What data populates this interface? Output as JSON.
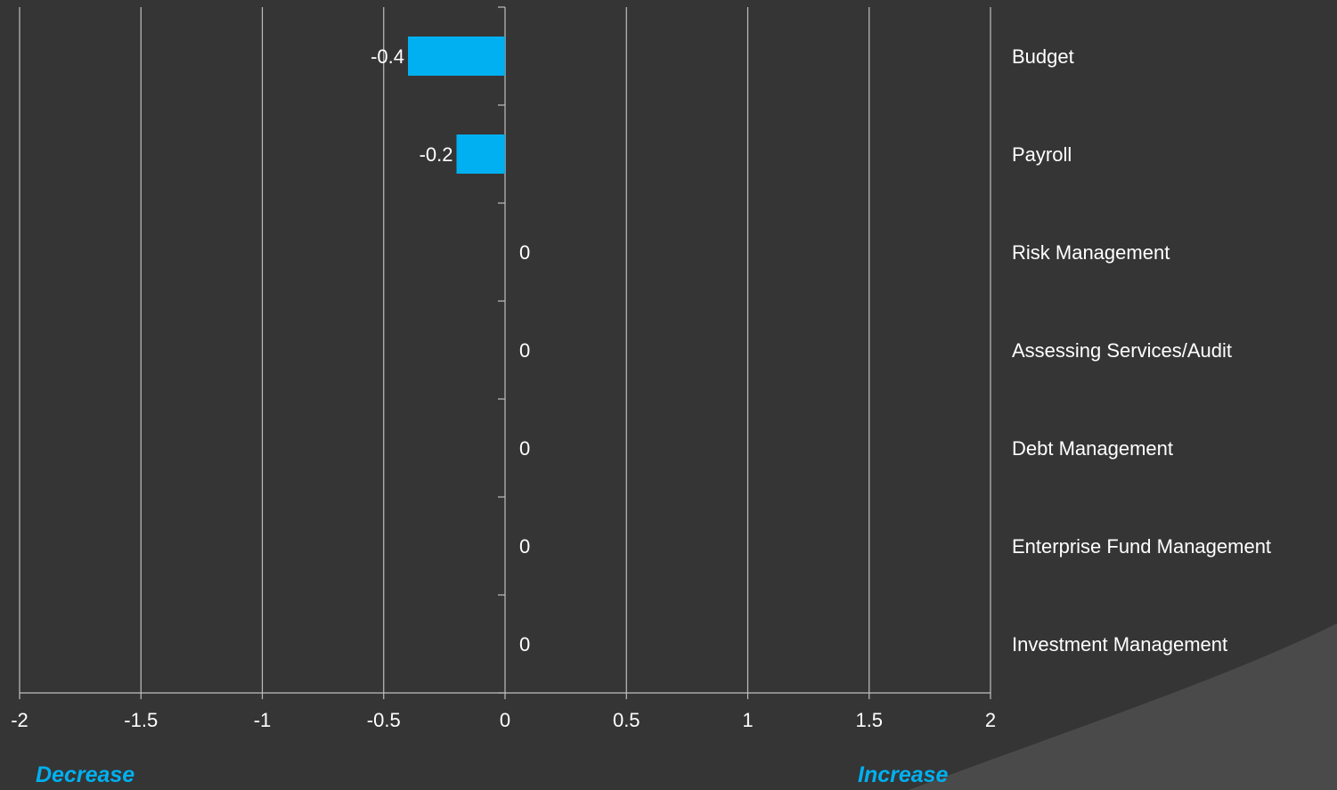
{
  "colors": {
    "background": "#353535",
    "bar": "#00b0f0",
    "gridline": "#bfbfbf",
    "text": "#ffffff",
    "accent": "#00b0f0"
  },
  "chart_data": {
    "type": "bar",
    "orientation": "horizontal",
    "categories": [
      "Budget",
      "Payroll",
      "Risk Management",
      "Assessing Services/Audit",
      "Debt Management",
      "Enterprise Fund Management",
      "Investment Management"
    ],
    "values": [
      -0.4,
      -0.2,
      0,
      0,
      0,
      0,
      0
    ],
    "data_labels": [
      "-0.4",
      "-0.2",
      "0",
      "0",
      "0",
      "0",
      "0"
    ],
    "xlim": [
      -2,
      2
    ],
    "x_ticks": [
      "-2",
      "-1.5",
      "-1",
      "-0.5",
      "0",
      "0.5",
      "1",
      "1.5",
      "2"
    ],
    "grid": true,
    "legend": "none",
    "title": "",
    "xlabel": "",
    "ylabel": ""
  },
  "annotations": {
    "decrease": "Decrease",
    "increase": "Increase"
  }
}
